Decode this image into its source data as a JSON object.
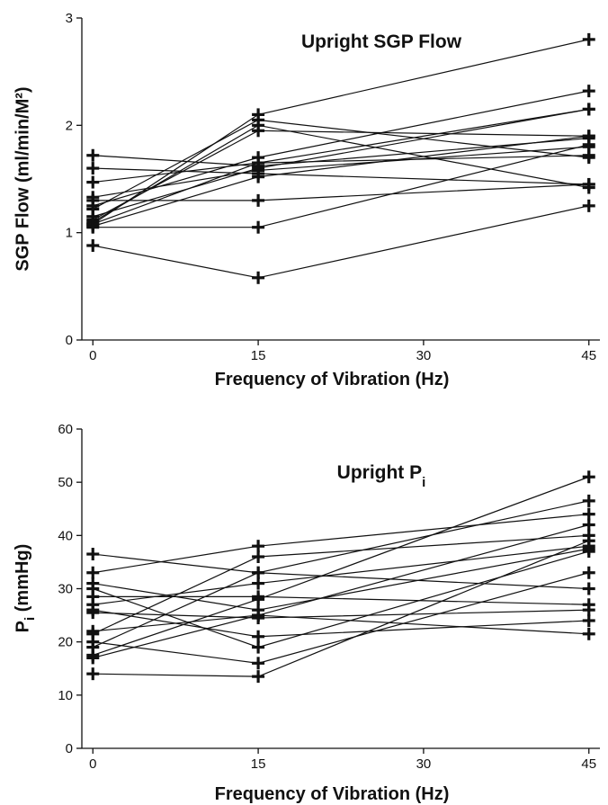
{
  "chart_data": [
    {
      "type": "line",
      "title": "Upright SGP Flow",
      "xlabel": "Frequency of Vibration (Hz)",
      "ylabel": "SGP Flow (ml/min/M²)",
      "xticks": [
        0,
        15,
        30,
        45
      ],
      "xtick_labels": [
        "0",
        "15",
        "30",
        "45"
      ],
      "yticks": [
        0,
        1,
        2,
        3
      ],
      "ytick_labels": [
        "0",
        "1",
        "2",
        "3"
      ],
      "xlim": [
        -1,
        46
      ],
      "ylim": [
        0,
        3
      ],
      "x": [
        0,
        15,
        45
      ],
      "series": [
        {
          "values": [
            1.72,
            1.62,
            1.88
          ]
        },
        {
          "values": [
            1.6,
            1.55,
            1.45
          ]
        },
        {
          "values": [
            1.47,
            1.65,
            1.72
          ]
        },
        {
          "values": [
            1.33,
            1.58,
            1.8
          ]
        },
        {
          "values": [
            1.22,
            2.05,
            1.7
          ]
        },
        {
          "values": [
            1.12,
            1.95,
            1.9
          ]
        },
        {
          "values": [
            1.08,
            2.1,
            2.8
          ]
        },
        {
          "values": [
            1.06,
            1.52,
            1.9
          ]
        },
        {
          "values": [
            1.1,
            2.0,
            1.42
          ]
        },
        {
          "values": [
            1.3,
            1.3,
            1.45
          ]
        },
        {
          "values": [
            1.15,
            1.6,
            2.15
          ]
        },
        {
          "values": [
            1.25,
            1.7,
            2.32
          ]
        },
        {
          "values": [
            1.05,
            1.05,
            1.82
          ]
        },
        {
          "values": [
            0.88,
            0.58,
            1.25
          ]
        },
        {
          "values": [
            1.08,
            1.65,
            2.15
          ]
        }
      ]
    },
    {
      "type": "line",
      "title": "Upright P",
      "title_subscript": "i",
      "xlabel": "Frequency of Vibration (Hz)",
      "ylabel": "P",
      "ylabel_subscript": "i",
      "ylabel_suffix": " (mmHg)",
      "xticks": [
        0,
        15,
        30,
        45
      ],
      "xtick_labels": [
        "0",
        "15",
        "30",
        "45"
      ],
      "yticks": [
        0,
        10,
        20,
        30,
        40,
        50,
        60
      ],
      "ytick_labels": [
        "0",
        "10",
        "20",
        "30",
        "40",
        "50",
        "60"
      ],
      "xlim": [
        -1,
        46
      ],
      "ylim": [
        0,
        60
      ],
      "x": [
        0,
        15,
        45
      ],
      "series": [
        {
          "values": [
            36.5,
            33.0,
            30.0
          ]
        },
        {
          "values": [
            33.0,
            38.0,
            44.0
          ]
        },
        {
          "values": [
            30.0,
            19.0,
            37.0
          ]
        },
        {
          "values": [
            28.5,
            28.5,
            27.0
          ]
        },
        {
          "values": [
            27.0,
            31.0,
            38.0
          ]
        },
        {
          "values": [
            26.0,
            21.0,
            24.0
          ]
        },
        {
          "values": [
            25.5,
            24.5,
            26.0
          ]
        },
        {
          "values": [
            22.0,
            25.0,
            21.5
          ]
        },
        {
          "values": [
            21.5,
            36.0,
            40.0
          ]
        },
        {
          "values": [
            20.0,
            16.0,
            33.0
          ]
        },
        {
          "values": [
            19.0,
            33.0,
            46.5
          ]
        },
        {
          "values": [
            17.5,
            28.0,
            51.0
          ]
        },
        {
          "values": [
            17.0,
            25.0,
            42.0
          ]
        },
        {
          "values": [
            14.0,
            13.5,
            39.0
          ]
        },
        {
          "values": [
            31.0,
            26.0,
            37.5
          ]
        }
      ]
    }
  ]
}
